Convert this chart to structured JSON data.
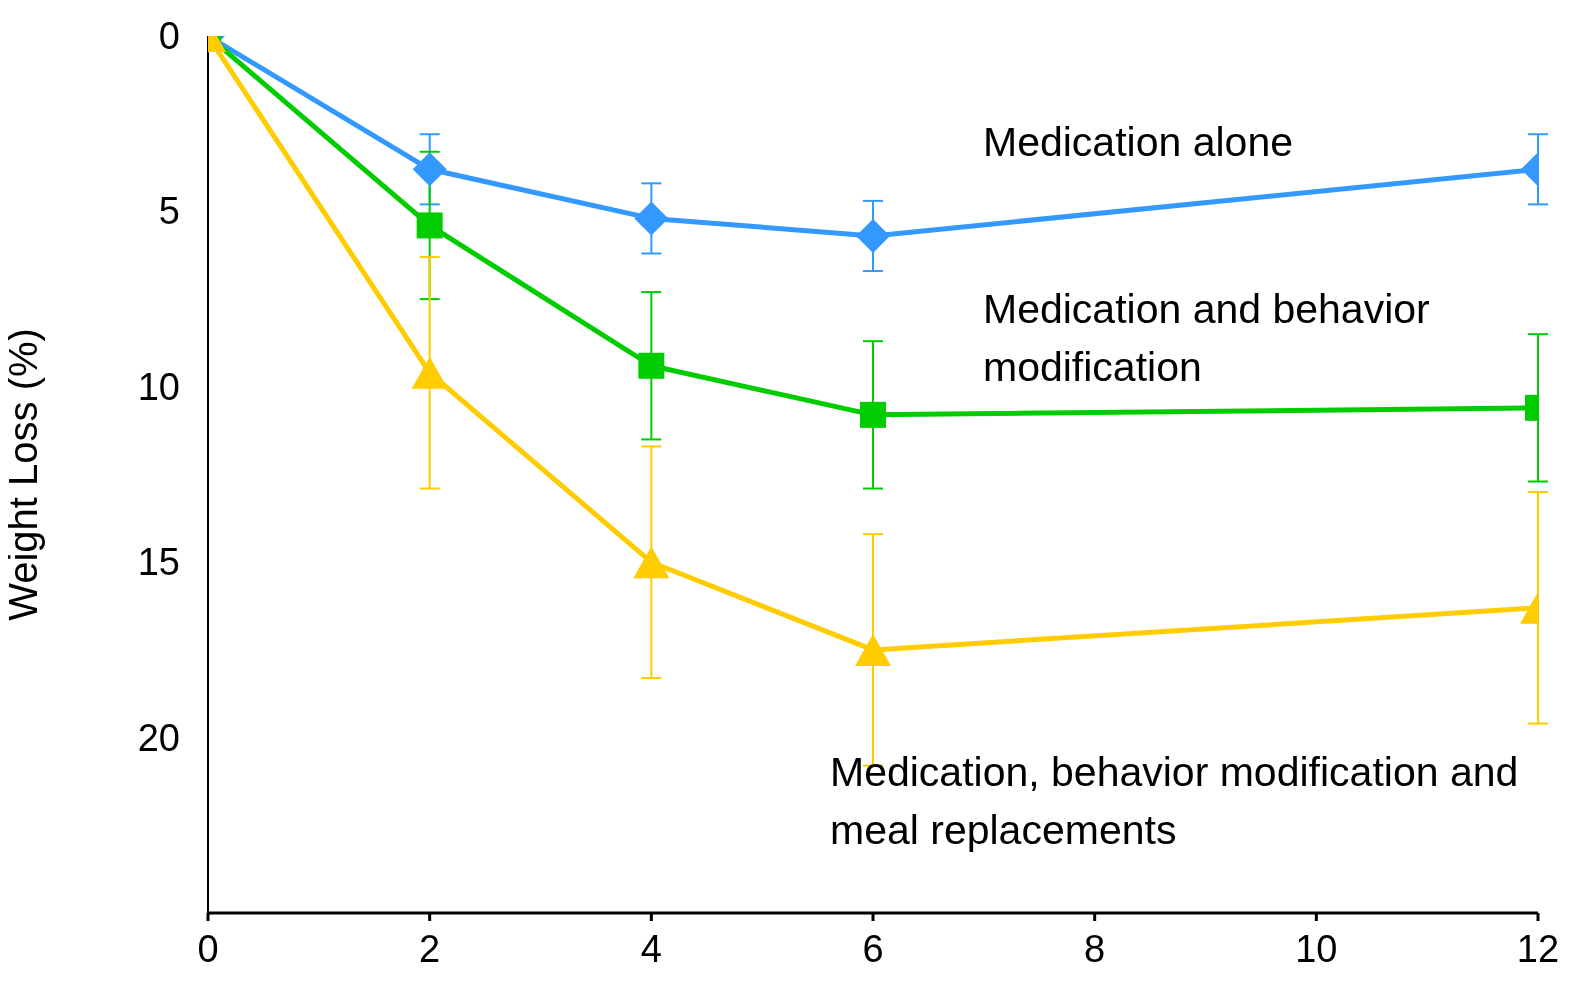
{
  "chart_data": {
    "type": "line",
    "ylabel": "Weight Loss (%)",
    "x": [
      0,
      2,
      4,
      6,
      12
    ],
    "xlim": [
      0,
      12
    ],
    "xticks": [
      0,
      2,
      4,
      6,
      8,
      10,
      12
    ],
    "ylim": [
      25,
      0
    ],
    "yticks": [
      0,
      5,
      10,
      15,
      20
    ],
    "grid": false,
    "legend": false,
    "series": [
      {
        "name": "Medication alone",
        "color": "#3399ff",
        "marker": "diamond",
        "values": [
          0,
          3.8,
          5.2,
          5.7,
          3.8
        ],
        "errors": [
          null,
          1,
          1,
          1,
          1
        ]
      },
      {
        "name": "Medication and behavior modification",
        "color": "#00cc00",
        "marker": "square",
        "values": [
          0,
          5.4,
          9.4,
          10.8,
          10.6
        ],
        "errors": [
          null,
          2.1,
          2.1,
          2.1,
          2.1
        ]
      },
      {
        "name": "Medication, behavior modification and meal replacements",
        "color": "#ffcc00",
        "marker": "triangle",
        "values": [
          0,
          9.6,
          15,
          17.5,
          16.3
        ],
        "errors": [
          null,
          3.3,
          3.3,
          3.3,
          3.3
        ]
      }
    ]
  }
}
